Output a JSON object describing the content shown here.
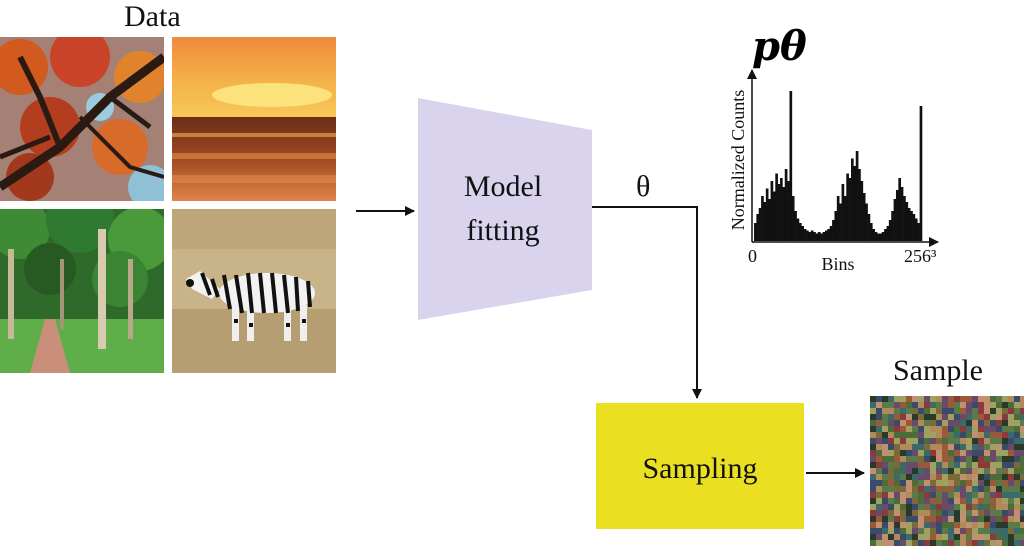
{
  "data_label": "Data",
  "images": [
    {
      "name": "autumn-tree-photo"
    },
    {
      "name": "sunset-sea-photo"
    },
    {
      "name": "forest-path-photo"
    },
    {
      "name": "zebra-photo"
    }
  ],
  "model_fitting": {
    "line1": "Model",
    "line2": "fitting",
    "color": "#d9d3ee"
  },
  "theta_label": "θ",
  "histogram": {
    "title": "pθ",
    "ylabel": "Normalized Counts",
    "xlabel": "Bins",
    "x_min_label": "0",
    "x_max_label": "256³"
  },
  "sampling": {
    "label": "Sampling",
    "color": "#eadf20"
  },
  "sample_label": "Sample",
  "chart_data": {
    "type": "bar",
    "title": "pθ",
    "xlabel": "Bins",
    "ylabel": "Normalized Counts",
    "x_ticks": [
      "0",
      "256³"
    ],
    "values": [
      0.12,
      0.18,
      0.22,
      0.3,
      0.26,
      0.35,
      0.28,
      0.4,
      0.33,
      0.45,
      0.38,
      0.42,
      0.36,
      0.48,
      0.4,
      1.0,
      0.3,
      0.2,
      0.15,
      0.12,
      0.1,
      0.08,
      0.07,
      0.06,
      0.07,
      0.06,
      0.05,
      0.06,
      0.05,
      0.06,
      0.07,
      0.08,
      0.1,
      0.14,
      0.2,
      0.3,
      0.25,
      0.38,
      0.3,
      0.45,
      0.42,
      0.55,
      0.5,
      0.6,
      0.48,
      0.4,
      0.32,
      0.25,
      0.18,
      0.12,
      0.08,
      0.06,
      0.05,
      0.05,
      0.06,
      0.08,
      0.1,
      0.14,
      0.2,
      0.28,
      0.34,
      0.42,
      0.36,
      0.3,
      0.26,
      0.22,
      0.2,
      0.18,
      0.15,
      0.12,
      0.9
    ]
  }
}
